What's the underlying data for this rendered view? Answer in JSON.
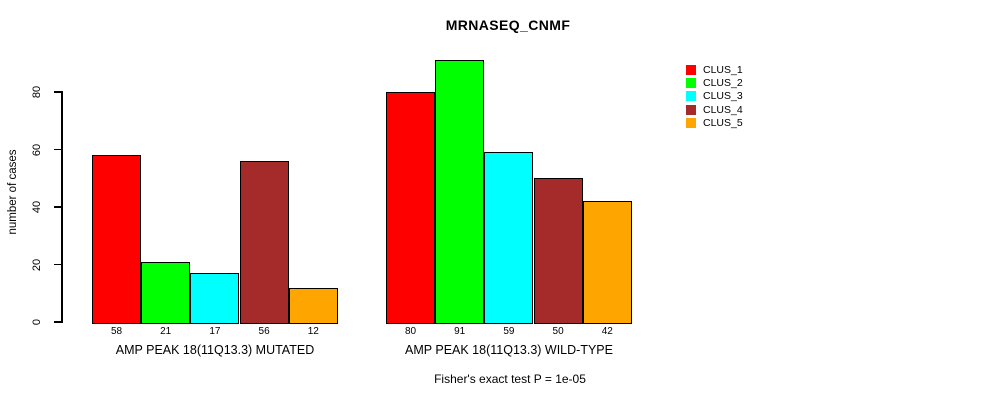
{
  "chart_data": {
    "type": "bar",
    "title": "MRNASEQ_CNMF",
    "xlabel": "",
    "ylabel": "number of cases",
    "caption": "Fisher's exact test P = 1e-05",
    "categories": [
      "AMP PEAK 18(11Q13.3) MUTATED",
      "AMP PEAK 18(11Q13.3) WILD-TYPE"
    ],
    "series": [
      {
        "name": "CLUS_1",
        "color": "#FF0000",
        "values": [
          58,
          80
        ]
      },
      {
        "name": "CLUS_2",
        "color": "#00FF00",
        "values": [
          21,
          91
        ]
      },
      {
        "name": "CLUS_3",
        "color": "#00FFFF",
        "values": [
          17,
          59
        ]
      },
      {
        "name": "CLUS_4",
        "color": "#A52A2A",
        "values": [
          56,
          50
        ]
      },
      {
        "name": "CLUS_5",
        "color": "#FFA500",
        "values": [
          12,
          42
        ]
      }
    ],
    "yticks": [
      0,
      20,
      40,
      60,
      80
    ],
    "ylim": [
      0,
      92
    ],
    "grid": false,
    "legend_position": "top-right",
    "bar_value_labels": true,
    "background_color": "#FFFFFF",
    "axis_color": "#000000"
  }
}
